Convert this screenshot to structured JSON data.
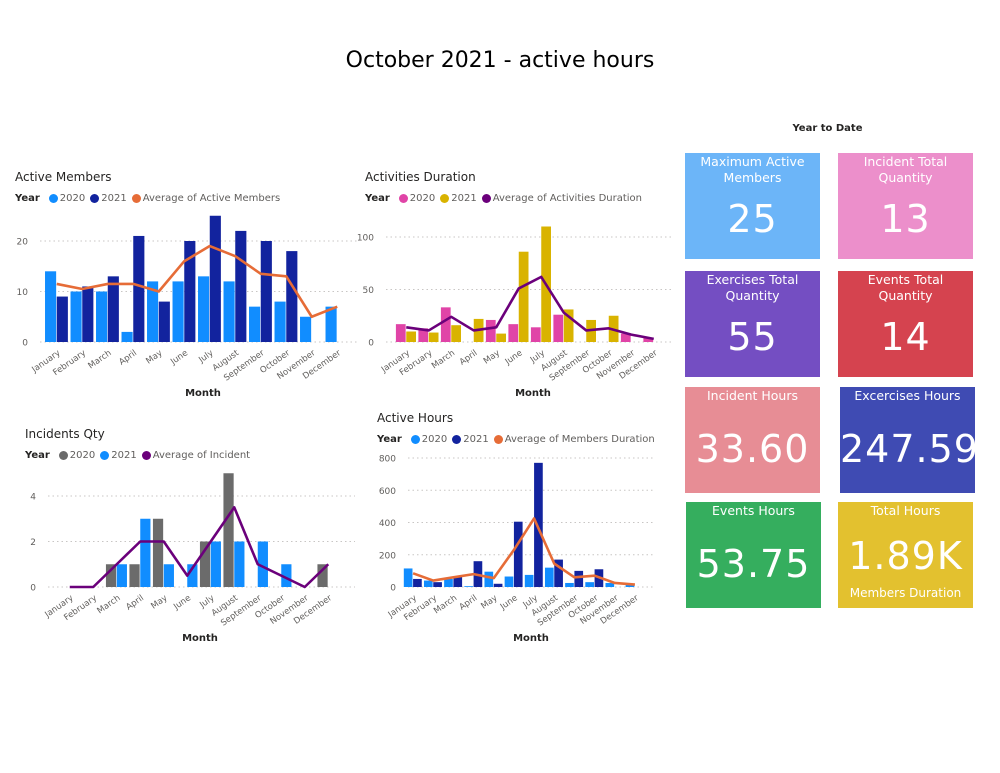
{
  "title": "October 2021 - active hours",
  "kpi_header": "Year to Date",
  "cards": [
    {
      "label": "Maximum Active Members",
      "value": "25",
      "color": "#6CB5F8"
    },
    {
      "label": "Incident Total Quantity",
      "value": "13",
      "color": "#EC8FCB"
    },
    {
      "label": "Exercises Total Quantity",
      "value": "55",
      "color": "#744EC2"
    },
    {
      "label": "Events Total Quantity",
      "value": "14",
      "color": "#D5434F"
    },
    {
      "label": "Incident Hours",
      "value": "33.60",
      "color": "#E78D95"
    },
    {
      "label": "Excercises Hours",
      "value": "247.59",
      "color": "#3F4BB3"
    },
    {
      "label": "Events Hours",
      "value": "53.75",
      "color": "#35AE5E"
    },
    {
      "label": "Total Hours",
      "value": "1.89K",
      "sub": "Members Duration",
      "color": "#E3C12F"
    }
  ],
  "chart_data": [
    {
      "type": "bar",
      "title": "Active Members",
      "legend_title": "Year",
      "xlabel": "Month",
      "ylabel": "",
      "categories": [
        "January",
        "February",
        "March",
        "April",
        "May",
        "June",
        "July",
        "August",
        "September",
        "October",
        "November",
        "December"
      ],
      "series": [
        {
          "name": "2020",
          "type": "bar",
          "color": "#118DFF",
          "values": [
            14,
            10,
            10,
            2,
            12,
            12,
            13,
            12,
            7,
            8,
            5,
            7
          ]
        },
        {
          "name": "2021",
          "type": "bar",
          "color": "#12239E",
          "values": [
            9,
            11,
            13,
            21,
            8,
            20,
            25,
            22,
            20,
            18,
            null,
            null
          ]
        },
        {
          "name": "Average of Active Members",
          "type": "line",
          "color": "#E66C37",
          "values": [
            11.5,
            10.5,
            11.5,
            11.5,
            10,
            16,
            19,
            17,
            13.5,
            13,
            5,
            7
          ]
        }
      ],
      "yticks": [
        0,
        10,
        20
      ],
      "ylim": [
        0,
        25
      ],
      "grid": true,
      "legend": "top-left"
    },
    {
      "type": "bar",
      "title": "Activities Duration",
      "legend_title": "Year",
      "xlabel": "Month",
      "ylabel": "",
      "categories": [
        "January",
        "February",
        "March",
        "April",
        "May",
        "June",
        "July",
        "August",
        "September",
        "October",
        "November",
        "December"
      ],
      "series": [
        {
          "name": "2020",
          "type": "bar",
          "color": "#E044A7",
          "values": [
            17,
            13,
            33,
            null,
            21,
            17,
            14,
            26,
            null,
            null,
            8,
            4
          ]
        },
        {
          "name": "2021",
          "type": "bar",
          "color": "#D9B300",
          "values": [
            10,
            9,
            16,
            22,
            8,
            86,
            110,
            31,
            21,
            25,
            null,
            null
          ]
        },
        {
          "name": "Average of Activities Duration",
          "type": "line",
          "color": "#6B007B",
          "values": [
            14,
            11,
            24,
            11,
            14,
            51,
            62,
            28,
            11,
            13,
            7,
            3
          ]
        }
      ],
      "yticks": [
        0,
        50,
        100
      ],
      "ylim": [
        0,
        115
      ],
      "grid": true,
      "legend": "top-left"
    },
    {
      "type": "bar",
      "title": "Incidents Qty",
      "legend_title": "Year",
      "xlabel": "Month",
      "ylabel": "",
      "categories": [
        "January",
        "February",
        "March",
        "April",
        "May",
        "June",
        "July",
        "August",
        "September",
        "October",
        "November",
        "December"
      ],
      "series": [
        {
          "name": "2020",
          "type": "bar",
          "color": "#6B6B6B",
          "values": [
            0,
            0,
            1,
            1,
            3,
            0,
            2,
            5,
            0,
            0,
            0,
            1
          ]
        },
        {
          "name": "2021",
          "type": "bar",
          "color": "#118DFF",
          "values": [
            0,
            0,
            1,
            3,
            1,
            1,
            2,
            2,
            2,
            1,
            0,
            0
          ]
        },
        {
          "name": "Average of Incident",
          "type": "line",
          "color": "#6B007B",
          "values": [
            0,
            0,
            1,
            2,
            2,
            0.5,
            2,
            3.5,
            1,
            0.5,
            0,
            1
          ]
        }
      ],
      "yticks": [
        0,
        2,
        4
      ],
      "ylim": [
        0,
        5
      ],
      "grid": true,
      "legend": "top-left"
    },
    {
      "type": "bar",
      "title": "Active Hours",
      "legend_title": "Year",
      "xlabel": "Month",
      "ylabel": "",
      "categories": [
        "January",
        "February",
        "March",
        "April",
        "May",
        "June",
        "July",
        "August",
        "September",
        "October",
        "November",
        "December"
      ],
      "series": [
        {
          "name": "2020",
          "type": "bar",
          "color": "#118DFF",
          "values": [
            115,
            40,
            50,
            5,
            95,
            65,
            75,
            120,
            25,
            30,
            25,
            15
          ]
        },
        {
          "name": "2021",
          "type": "bar",
          "color": "#12239E",
          "values": [
            50,
            30,
            65,
            160,
            20,
            405,
            770,
            170,
            100,
            110,
            null,
            null
          ]
        },
        {
          "name": "Average of Members Duration",
          "type": "line",
          "color": "#E66C37",
          "values": [
            85,
            40,
            60,
            80,
            55,
            230,
            425,
            145,
            60,
            70,
            25,
            15
          ]
        }
      ],
      "yticks": [
        0,
        200,
        400,
        600,
        800
      ],
      "ylim": [
        0,
        800
      ],
      "grid": true,
      "legend": "top-left"
    }
  ]
}
